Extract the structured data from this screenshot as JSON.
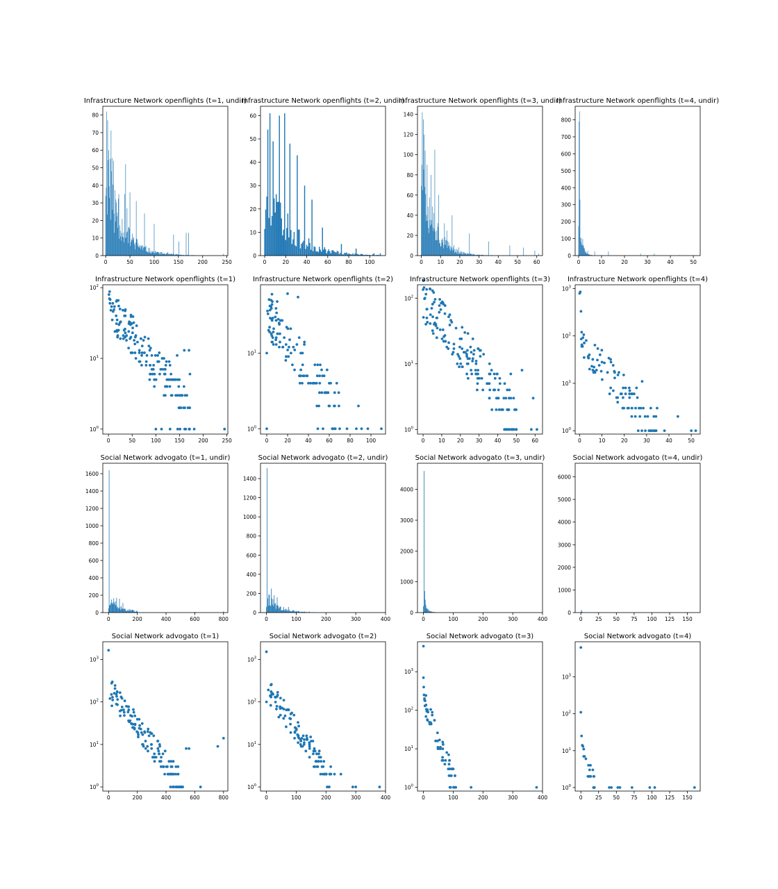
{
  "colors": {
    "series": "#1f77b4",
    "axes": "#000000",
    "background": "#ffffff"
  },
  "chart_data": [
    {
      "type": "bar",
      "title": "Infrastructure Network openflights (t=1, undir)",
      "xlim": [
        -6,
        252
      ],
      "ylim": [
        0,
        85
      ],
      "xticks": [
        0,
        50,
        100,
        150,
        200,
        250
      ],
      "yticks": [
        0,
        10,
        20,
        30,
        40,
        50,
        60,
        70,
        80
      ],
      "seed": 11,
      "hist": {
        "n": 245,
        "peaks": [
          [
            2,
            82
          ],
          [
            4,
            77
          ],
          [
            6,
            60
          ],
          [
            9,
            55
          ],
          [
            12,
            48
          ],
          [
            16,
            54
          ],
          [
            27,
            35
          ],
          [
            41,
            52
          ],
          [
            50,
            36
          ],
          [
            63,
            31
          ],
          [
            80,
            24
          ],
          [
            100,
            18
          ],
          [
            140,
            12
          ],
          [
            151,
            8
          ],
          [
            166,
            13
          ],
          [
            171,
            13
          ],
          [
            243,
            1
          ]
        ],
        "decay": 32,
        "amp": 60
      }
    },
    {
      "type": "bar",
      "title": "Infrastructure Network openflights (t=2, undir)",
      "xlim": [
        -4,
        115
      ],
      "ylim": [
        0,
        64
      ],
      "xticks": [
        0,
        20,
        40,
        60,
        80,
        100
      ],
      "yticks": [
        0,
        10,
        20,
        30,
        40,
        50,
        60
      ],
      "seed": 23,
      "hist": {
        "n": 112,
        "peaks": [
          [
            3,
            54
          ],
          [
            5,
            61
          ],
          [
            8,
            49
          ],
          [
            14,
            60
          ],
          [
            19,
            61
          ],
          [
            24,
            48
          ],
          [
            31,
            43
          ],
          [
            38,
            30
          ],
          [
            45,
            24
          ],
          [
            55,
            12
          ],
          [
            73,
            5
          ],
          [
            87,
            3
          ],
          [
            104,
            1
          ],
          [
            110,
            1
          ]
        ],
        "decay": 22,
        "amp": 40,
        "rise": 5
      }
    },
    {
      "type": "bar",
      "title": "Infrastructure Network openflights (t=3, undir)",
      "xlim": [
        -2,
        63
      ],
      "ylim": [
        0,
        148
      ],
      "xticks": [
        0,
        10,
        20,
        30,
        40,
        50,
        60
      ],
      "yticks": [
        0,
        20,
        40,
        60,
        80,
        100,
        120,
        140
      ],
      "seed": 37,
      "hist": {
        "n": 62,
        "peaks": [
          [
            0.5,
            142
          ],
          [
            1,
            135
          ],
          [
            1.5,
            120
          ],
          [
            2,
            104
          ],
          [
            3,
            90
          ],
          [
            5,
            80
          ],
          [
            7,
            105
          ],
          [
            9,
            60
          ],
          [
            12,
            32
          ],
          [
            16,
            40
          ],
          [
            25,
            22
          ],
          [
            35,
            14
          ],
          [
            46,
            10
          ],
          [
            53,
            8
          ],
          [
            59,
            5
          ],
          [
            61,
            2
          ]
        ],
        "decay": 6,
        "amp": 120,
        "step": 0.25
      }
    },
    {
      "type": "bar",
      "title": "Infrastructure Network openflights (t=4, undir)",
      "xlim": [
        -1.5,
        53
      ],
      "ylim": [
        0,
        880
      ],
      "xticks": [
        0,
        10,
        20,
        30,
        40,
        50
      ],
      "yticks": [
        0,
        100,
        200,
        300,
        400,
        500,
        600,
        700,
        800
      ],
      "seed": 41,
      "hist": {
        "n": 52,
        "peaks": [
          [
            0.2,
            790
          ],
          [
            0.4,
            850
          ],
          [
            0.6,
            330
          ],
          [
            0.9,
            80
          ],
          [
            1.5,
            60
          ],
          [
            2.5,
            40
          ],
          [
            4,
            30
          ],
          [
            7,
            25
          ],
          [
            13,
            25
          ],
          [
            27,
            12
          ],
          [
            33,
            12
          ],
          [
            44,
            3
          ],
          [
            51,
            1
          ]
        ],
        "decay": 1.2,
        "amp": 300,
        "step": 0.2
      }
    },
    {
      "type": "scatter",
      "title": "Infrastructure Network openflights (t=1)",
      "log": true,
      "xlim": [
        -12,
        252
      ],
      "ylim": [
        0.85,
        110
      ],
      "xticks": [
        0,
        50,
        100,
        150,
        200,
        250
      ],
      "yticks": [
        1,
        10,
        100
      ],
      "seed": 101,
      "gen": {
        "x0": 0,
        "x1": 172,
        "n": 160,
        "yStart": 55,
        "yEnd": 2,
        "spread": 0.28
      },
      "points": [
        [
          1,
          80
        ],
        [
          2,
          70
        ],
        [
          3,
          60
        ],
        [
          5,
          48
        ],
        [
          8,
          35
        ],
        [
          100,
          1
        ],
        [
          112,
          1
        ],
        [
          130,
          1
        ],
        [
          146,
          1
        ],
        [
          151,
          1
        ],
        [
          163,
          1
        ],
        [
          171,
          1
        ],
        [
          181,
          1
        ],
        [
          245,
          1
        ],
        [
          160,
          13
        ],
        [
          170,
          13
        ],
        [
          172,
          6
        ],
        [
          145,
          11
        ]
      ]
    },
    {
      "type": "scatter",
      "title": "Infrastructure Network openflights (t=2)",
      "log": true,
      "xlim": [
        -6,
        114
      ],
      "ylim": [
        0.85,
        80
      ],
      "xticks": [
        0,
        20,
        40,
        60,
        80,
        100
      ],
      "yticks": [
        1,
        10
      ],
      "seed": 202,
      "gen": {
        "x0": 0,
        "x1": 70,
        "n": 120,
        "yStart": 30,
        "yEnd": 2,
        "spread": 0.3
      },
      "points": [
        [
          0,
          10
        ],
        [
          0,
          1
        ],
        [
          5,
          60
        ],
        [
          10,
          48
        ],
        [
          20,
          61
        ],
        [
          30,
          55
        ],
        [
          49,
          1
        ],
        [
          54,
          1
        ],
        [
          63,
          1
        ],
        [
          70,
          1
        ],
        [
          77,
          1
        ],
        [
          86,
          1
        ],
        [
          91,
          1
        ],
        [
          97,
          1
        ],
        [
          110,
          1
        ],
        [
          88,
          2
        ]
      ]
    },
    {
      "type": "scatter",
      "title": "Infrastructure Network openflights (t=3)",
      "log": true,
      "xlim": [
        -3,
        64
      ],
      "ylim": [
        0.85,
        160
      ],
      "xticks": [
        0,
        10,
        20,
        30,
        40,
        50,
        60
      ],
      "yticks": [
        1,
        10,
        100
      ],
      "seed": 303,
      "gen": {
        "x0": 0,
        "x1": 50,
        "n": 170,
        "yStart": 100,
        "yEnd": 1.5,
        "spread": 0.35
      },
      "points": [
        [
          0,
          135
        ],
        [
          0.5,
          145
        ],
        [
          1,
          100
        ],
        [
          1.5,
          40
        ],
        [
          2,
          50
        ],
        [
          47,
          7
        ],
        [
          53,
          8
        ],
        [
          59,
          3
        ],
        [
          61,
          1
        ],
        [
          58,
          1
        ]
      ]
    },
    {
      "type": "scatter",
      "title": "Infrastructure Network openflights (t=4)",
      "log": true,
      "xlim": [
        -2,
        54
      ],
      "ylim": [
        0.85,
        1200
      ],
      "xticks": [
        0,
        10,
        20,
        30,
        40,
        50
      ],
      "yticks": [
        1,
        10,
        100,
        1000
      ],
      "seed": 404,
      "gen": {
        "x0": 0.5,
        "x1": 35,
        "n": 90,
        "yStart": 60,
        "yEnd": 1.2,
        "spread": 0.4
      },
      "points": [
        [
          0,
          790
        ],
        [
          0.3,
          850
        ],
        [
          0.6,
          330
        ],
        [
          1,
          65
        ],
        [
          1.3,
          60
        ],
        [
          2,
          35
        ],
        [
          28,
          11
        ],
        [
          44,
          2
        ],
        [
          50,
          1
        ],
        [
          52,
          1
        ],
        [
          33,
          1
        ],
        [
          38,
          1
        ]
      ]
    },
    {
      "type": "bar",
      "title": "Social Network advogato (t=1, undir)",
      "xlim": [
        -40,
        830
      ],
      "ylim": [
        0,
        1720
      ],
      "xticks": [
        0,
        200,
        400,
        600,
        800
      ],
      "yticks": [
        0,
        200,
        400,
        600,
        800,
        1000,
        1200,
        1400,
        1600
      ],
      "seed": 51,
      "hist": {
        "n": 200,
        "peaks": [
          [
            2,
            1640
          ],
          [
            18,
            150
          ],
          [
            35,
            165
          ],
          [
            55,
            170
          ],
          [
            75,
            160
          ],
          [
            600,
            8
          ],
          [
            800,
            14
          ]
        ],
        "decay": 90,
        "amp": 175,
        "rise": 15,
        "step": 4
      }
    },
    {
      "type": "bar",
      "title": "Social Network advogato (t=2, undir)",
      "xlim": [
        -20,
        400
      ],
      "ylim": [
        0,
        1560
      ],
      "xticks": [
        0,
        100,
        200,
        300,
        400
      ],
      "yticks": [
        0,
        200,
        400,
        600,
        800,
        1000,
        1200,
        1400
      ],
      "seed": 62,
      "hist": {
        "n": 200,
        "peaks": [
          [
            1,
            1510
          ],
          [
            7,
            190
          ],
          [
            15,
            250
          ],
          [
            25,
            180
          ],
          [
            35,
            160
          ],
          [
            250,
            2
          ],
          [
            380,
            1
          ]
        ],
        "decay": 40,
        "amp": 200,
        "rise": 6,
        "step": 2
      }
    },
    {
      "type": "bar",
      "title": "Social Network advogato (t=3, undir)",
      "xlim": [
        -20,
        400
      ],
      "ylim": [
        0,
        4850
      ],
      "xticks": [
        0,
        100,
        200,
        300,
        400
      ],
      "yticks": [
        0,
        1000,
        2000,
        3000,
        4000
      ],
      "seed": 73,
      "hist": {
        "n": 200,
        "peaks": [
          [
            1,
            4600
          ],
          [
            3,
            700
          ],
          [
            5,
            420
          ],
          [
            7,
            250
          ],
          [
            10,
            130
          ]
        ],
        "decay": 12,
        "amp": 350,
        "step": 2
      }
    },
    {
      "type": "bar",
      "title": "Social Network advogato (t=4, undir)",
      "xlim": [
        -8,
        168
      ],
      "ylim": [
        0,
        6600
      ],
      "xticks": [
        0,
        25,
        50,
        75,
        100,
        125,
        150
      ],
      "yticks": [
        0,
        1000,
        2000,
        3000,
        4000,
        5000,
        6000
      ],
      "seed": 84,
      "hist": {
        "n": 168,
        "peaks": [
          [
            0.5,
            6300
          ],
          [
            1.3,
            110
          ],
          [
            2,
            30
          ]
        ],
        "decay": 3,
        "amp": 40,
        "step": 1
      }
    },
    {
      "type": "scatter",
      "title": "Social Network advogato (t=1)",
      "log": true,
      "xlim": [
        -40,
        830
      ],
      "ylim": [
        0.8,
        2600
      ],
      "xticks": [
        0,
        200,
        400,
        600,
        800
      ],
      "yticks": [
        1,
        10,
        100,
        1000
      ],
      "seed": 505,
      "gen": {
        "x0": 20,
        "x1": 520,
        "n": 140,
        "yStart": 160,
        "yEnd": 1,
        "spread": 0.3
      },
      "points": [
        [
          0,
          1640
        ],
        [
          10,
          120
        ],
        [
          20,
          150
        ],
        [
          40,
          160
        ],
        [
          60,
          170
        ],
        [
          80,
          165
        ],
        [
          540,
          8
        ],
        [
          560,
          8
        ],
        [
          760,
          9
        ],
        [
          800,
          14
        ],
        [
          640,
          1
        ]
      ]
    },
    {
      "type": "scatter",
      "title": "Social Network advogato (t=2)",
      "log": true,
      "xlim": [
        -20,
        400
      ],
      "ylim": [
        0.8,
        2600
      ],
      "xticks": [
        0,
        100,
        200,
        300,
        400
      ],
      "yticks": [
        1,
        10,
        100,
        1000
      ],
      "seed": 606,
      "gen": {
        "x0": 5,
        "x1": 240,
        "n": 120,
        "yStart": 190,
        "yEnd": 1,
        "spread": 0.28
      },
      "points": [
        [
          0,
          1510
        ],
        [
          0,
          100
        ],
        [
          15,
          250
        ],
        [
          250,
          2
        ],
        [
          290,
          1
        ],
        [
          300,
          1
        ],
        [
          380,
          1
        ]
      ]
    },
    {
      "type": "scatter",
      "title": "Social Network advogato (t=3)",
      "log": true,
      "xlim": [
        -20,
        400
      ],
      "ylim": [
        0.8,
        6000
      ],
      "xticks": [
        0,
        100,
        200,
        300,
        400
      ],
      "yticks": [
        1,
        10,
        100,
        1000
      ],
      "seed": 707,
      "gen": {
        "x0": 2,
        "x1": 110,
        "n": 60,
        "yStart": 180,
        "yEnd": 1,
        "spread": 0.3
      },
      "points": [
        [
          0,
          4600
        ],
        [
          0,
          700
        ],
        [
          1,
          400
        ],
        [
          2,
          250
        ],
        [
          5,
          130
        ],
        [
          160,
          1
        ],
        [
          380,
          1
        ]
      ]
    },
    {
      "type": "scatter",
      "title": "Social Network advogato (t=4)",
      "log": true,
      "xlim": [
        -8,
        168
      ],
      "ylim": [
        0.8,
        9000
      ],
      "xticks": [
        0,
        25,
        50,
        75,
        100,
        125,
        150
      ],
      "yticks": [
        1,
        10,
        100,
        1000
      ],
      "seed": 808,
      "gen": {
        "x0": 3,
        "x1": 20,
        "n": 16,
        "yStart": 12,
        "yEnd": 1,
        "spread": 0.3
      },
      "points": [
        [
          0,
          6300
        ],
        [
          0,
          110
        ],
        [
          1,
          25
        ],
        [
          2,
          14
        ],
        [
          3,
          13
        ],
        [
          4,
          7
        ],
        [
          40,
          1
        ],
        [
          43,
          1
        ],
        [
          52,
          1
        ],
        [
          55,
          1
        ],
        [
          72,
          1
        ],
        [
          97,
          1
        ],
        [
          104,
          1
        ],
        [
          160,
          1
        ]
      ]
    }
  ]
}
